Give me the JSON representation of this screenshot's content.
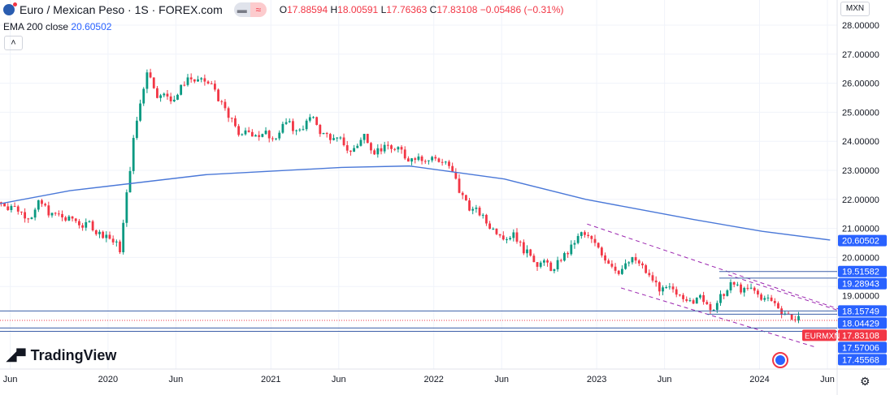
{
  "header": {
    "title": "Euro / Mexican Peso · 1S · FOREX.com",
    "open_label": "O",
    "open": "17.88594",
    "high_label": "H",
    "high": "18.00591",
    "low_label": "L",
    "low": "17.76363",
    "close_label": "C",
    "close": "17.83108",
    "change": "−0.05486 (−0.31%)",
    "currency": "MXN"
  },
  "indicator": {
    "label": "EMA 200 close",
    "value": "20.60502",
    "color": "#2962ff"
  },
  "logo": "TradingView",
  "colors": {
    "up": "#089981",
    "down": "#f23645",
    "ema": "#4a78d8",
    "channel": "#9c27b0",
    "label_bg": "#2962ff"
  },
  "chart_data": {
    "type": "candlestick",
    "symbol_label": "EURMXN",
    "last_price": "17.83108",
    "y_ticks": [
      "28.00000",
      "27.00000",
      "26.00000",
      "25.00000",
      "24.00000",
      "23.00000",
      "22.00000",
      "21.00000",
      "20.00000",
      "19.00000"
    ],
    "x_ticks": [
      "Jun",
      "2020",
      "Jun",
      "2021",
      "Jun",
      "2022",
      "Jun",
      "2023",
      "Jun",
      "2024",
      "Jun"
    ],
    "start_month": "2019-06",
    "monthly_close": [
      21.8,
      21.5,
      21.8,
      21.4,
      21.3,
      21.2,
      21.1,
      20.8,
      20.3,
      24.0,
      26.5,
      25.5,
      25.5,
      26.2,
      26.0,
      25.8,
      24.8,
      24.1,
      24.3,
      24.2,
      24.6,
      24.3,
      24.8,
      24.2,
      24.0,
      23.6,
      24.2,
      23.7,
      23.8,
      23.5,
      23.6,
      23.4,
      23.3,
      22.3,
      21.6,
      21.2,
      20.9,
      20.9,
      20.1,
      19.8,
      19.5,
      20.2,
      20.8,
      20.4,
      19.9,
      19.6,
      19.9,
      19.3,
      18.8,
      18.6,
      18.7,
      18.6,
      18.3,
      19.0,
      18.8,
      18.7,
      18.5,
      18.1,
      17.83
    ],
    "ema_points": [
      [
        0,
        21.05
      ],
      [
        8,
        21.0
      ],
      [
        12,
        21.6
      ],
      [
        20,
        22.3
      ],
      [
        30,
        22.85
      ],
      [
        40,
        23.1
      ],
      [
        45,
        23.15
      ],
      [
        52,
        22.7
      ],
      [
        58,
        22.0
      ],
      [
        66,
        21.3
      ],
      [
        71,
        20.9
      ],
      [
        76,
        20.6
      ]
    ],
    "price_lines": [
      "19.51582",
      "19.28943",
      "18.15749",
      "18.04429",
      "17.57006",
      "17.45568"
    ],
    "channel": [
      [
        [
          42.3,
          21.15
        ],
        [
          61.3,
          18.15
        ]
      ],
      [
        [
          44.8,
          18.95
        ],
        [
          59.2,
          16.9
        ]
      ],
      [
        [
          52.7,
          19.4
        ],
        [
          61.3,
          18.1
        ]
      ]
    ]
  }
}
